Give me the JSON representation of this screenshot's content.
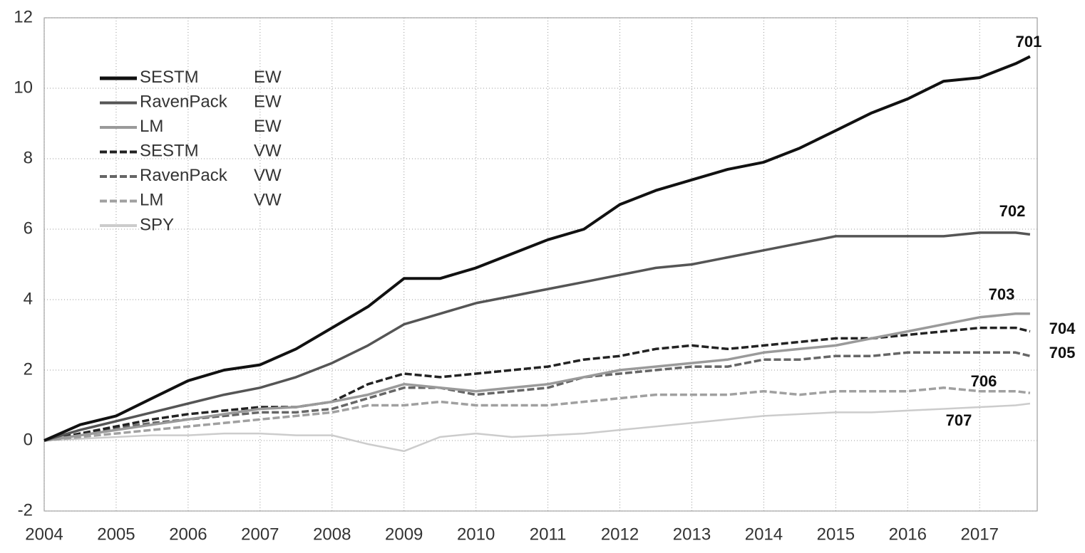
{
  "chart_data": {
    "type": "line",
    "x": [
      2004,
      2004.5,
      2005,
      2005.5,
      2006,
      2006.5,
      2007,
      2007.5,
      2008,
      2008.5,
      2009,
      2009.5,
      2010,
      2010.5,
      2011,
      2011.5,
      2012,
      2012.5,
      2013,
      2013.5,
      2014,
      2014.5,
      2015,
      2015.5,
      2016,
      2016.5,
      2017,
      2017.5,
      2017.7
    ],
    "xlim": [
      2004,
      2017.8
    ],
    "xticks": [
      2004,
      2005,
      2006,
      2007,
      2008,
      2009,
      2010,
      2011,
      2012,
      2013,
      2014,
      2015,
      2016,
      2017
    ],
    "ylim": [
      -2,
      12
    ],
    "yticks": [
      -2,
      0,
      2,
      4,
      6,
      8,
      10,
      12
    ],
    "grid": true,
    "legend": "upper-left",
    "series": [
      {
        "name": "SESTM EW",
        "label": "701",
        "color": "#111111",
        "style": "solid",
        "values": [
          0,
          0.45,
          0.7,
          1.2,
          1.7,
          2.0,
          2.15,
          2.6,
          3.2,
          3.8,
          4.6,
          4.6,
          4.9,
          5.3,
          5.7,
          6.0,
          6.7,
          7.1,
          7.4,
          7.7,
          7.9,
          8.3,
          8.8,
          9.3,
          9.7,
          10.2,
          10.3,
          10.7,
          10.9
        ]
      },
      {
        "name": "RavenPack EW",
        "label": "702",
        "color": "#555555",
        "style": "solid",
        "values": [
          0,
          0.3,
          0.55,
          0.8,
          1.05,
          1.3,
          1.5,
          1.8,
          2.2,
          2.7,
          3.3,
          3.6,
          3.9,
          4.1,
          4.3,
          4.5,
          4.7,
          4.9,
          5.0,
          5.2,
          5.4,
          5.6,
          5.8,
          5.8,
          5.8,
          5.8,
          5.9,
          5.9,
          5.85
        ]
      },
      {
        "name": "LM EW",
        "label": "703",
        "color": "#9a9a9a",
        "style": "solid",
        "values": [
          0,
          0.15,
          0.3,
          0.45,
          0.6,
          0.75,
          0.9,
          0.95,
          1.1,
          1.3,
          1.6,
          1.5,
          1.4,
          1.5,
          1.6,
          1.8,
          2.0,
          2.1,
          2.2,
          2.3,
          2.5,
          2.6,
          2.7,
          2.9,
          3.1,
          3.3,
          3.5,
          3.6,
          3.6
        ]
      },
      {
        "name": "SESTM VW",
        "label": "704",
        "color": "#222222",
        "style": "dashed",
        "values": [
          0,
          0.2,
          0.4,
          0.6,
          0.75,
          0.85,
          0.95,
          0.95,
          1.1,
          1.6,
          1.9,
          1.8,
          1.9,
          2.0,
          2.1,
          2.3,
          2.4,
          2.6,
          2.7,
          2.6,
          2.7,
          2.8,
          2.9,
          2.9,
          3.0,
          3.1,
          3.2,
          3.2,
          3.1
        ]
      },
      {
        "name": "RavenPack VW",
        "label": "705",
        "color": "#666666",
        "style": "dashed",
        "values": [
          0,
          0.2,
          0.35,
          0.5,
          0.6,
          0.7,
          0.8,
          0.8,
          0.9,
          1.2,
          1.5,
          1.5,
          1.3,
          1.4,
          1.5,
          1.8,
          1.9,
          2.0,
          2.1,
          2.1,
          2.3,
          2.3,
          2.4,
          2.4,
          2.5,
          2.5,
          2.5,
          2.5,
          2.4
        ]
      },
      {
        "name": "LM VW",
        "label": "706",
        "color": "#a0a0a0",
        "style": "dashed",
        "values": [
          0,
          0.1,
          0.2,
          0.3,
          0.4,
          0.5,
          0.6,
          0.7,
          0.8,
          1.0,
          1.0,
          1.1,
          1.0,
          1.0,
          1.0,
          1.1,
          1.2,
          1.3,
          1.3,
          1.3,
          1.4,
          1.3,
          1.4,
          1.4,
          1.4,
          1.5,
          1.4,
          1.4,
          1.35
        ]
      },
      {
        "name": "SPY",
        "label": "707",
        "color": "#cccccc",
        "style": "solid",
        "values": [
          0,
          0.05,
          0.1,
          0.15,
          0.15,
          0.2,
          0.2,
          0.15,
          0.15,
          -0.1,
          -0.3,
          0.1,
          0.2,
          0.1,
          0.15,
          0.2,
          0.3,
          0.4,
          0.5,
          0.6,
          0.7,
          0.75,
          0.8,
          0.8,
          0.85,
          0.9,
          0.95,
          1.0,
          1.05
        ]
      }
    ]
  }
}
